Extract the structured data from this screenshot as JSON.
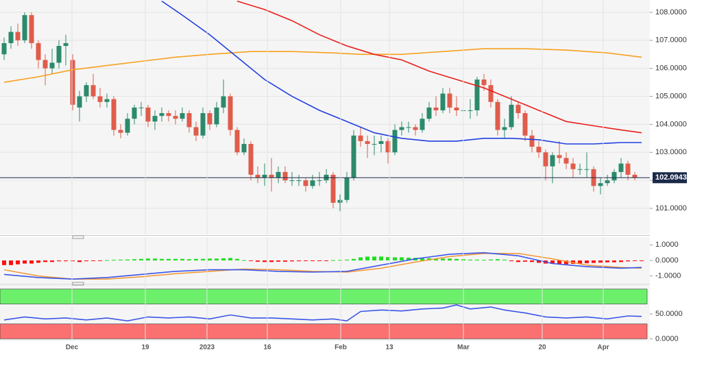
{
  "chart_data": [
    {
      "type": "candlestick",
      "xlim": [
        -0.6,
        94.2
      ],
      "ylim": [
        100.07,
        108.44
      ],
      "yticks": [
        {
          "value": 101,
          "label": "101.0000"
        },
        {
          "value": 102,
          "label": "102.0000"
        },
        {
          "value": 103,
          "label": "103.0000"
        },
        {
          "value": 104,
          "label": "104.0000"
        },
        {
          "value": 105,
          "label": "105.0000"
        },
        {
          "value": 106,
          "label": "106.0000"
        },
        {
          "value": 107,
          "label": "107.0000"
        },
        {
          "value": 108,
          "label": "108.0000"
        }
      ],
      "grid": true,
      "up_color": "#2c8a6c",
      "down_color": "#e05c4b",
      "ohlc": [
        [
          106.5,
          107.1,
          106.3,
          106.9
        ],
        [
          106.9,
          107.5,
          106.7,
          107.3
        ],
        [
          107.3,
          107.6,
          106.8,
          107.0
        ],
        [
          107.0,
          108.0,
          106.9,
          107.9
        ],
        [
          107.9,
          108.0,
          106.7,
          106.9
        ],
        [
          106.9,
          107.0,
          106.0,
          106.3
        ],
        [
          106.3,
          106.5,
          105.4,
          106.0
        ],
        [
          106.0,
          106.7,
          105.8,
          106.2
        ],
        [
          106.2,
          107.0,
          106.0,
          106.8
        ],
        [
          106.8,
          107.2,
          106.1,
          106.9
        ],
        [
          106.3,
          106.5,
          104.5,
          104.7
        ],
        [
          104.6,
          105.2,
          104.1,
          105.0
        ],
        [
          105.0,
          105.5,
          104.8,
          105.4
        ],
        [
          105.4,
          105.8,
          104.9,
          105.0
        ],
        [
          105.0,
          105.3,
          104.6,
          104.8
        ],
        [
          104.8,
          105.1,
          104.6,
          104.9
        ],
        [
          104.9,
          105.0,
          103.6,
          103.8
        ],
        [
          103.8,
          104.0,
          103.5,
          103.7
        ],
        [
          103.7,
          104.4,
          103.6,
          104.2
        ],
        [
          104.2,
          104.7,
          104.0,
          104.6
        ],
        [
          104.6,
          104.8,
          104.3,
          104.6
        ],
        [
          104.6,
          104.7,
          103.9,
          104.1
        ],
        [
          104.1,
          104.5,
          103.8,
          104.3
        ],
        [
          104.3,
          104.6,
          104.1,
          104.4
        ],
        [
          104.4,
          104.5,
          104.1,
          104.3
        ],
        [
          104.3,
          104.5,
          104.0,
          104.2
        ],
        [
          104.2,
          104.6,
          104.1,
          104.4
        ],
        [
          104.4,
          104.5,
          103.7,
          103.9
        ],
        [
          103.9,
          104.1,
          103.4,
          103.6
        ],
        [
          103.6,
          104.6,
          103.5,
          104.4
        ],
        [
          104.4,
          104.5,
          103.8,
          104.0
        ],
        [
          104.0,
          104.8,
          103.9,
          104.6
        ],
        [
          104.6,
          105.6,
          104.4,
          105.0
        ],
        [
          105.0,
          105.1,
          103.6,
          103.8
        ],
        [
          103.8,
          103.9,
          102.9,
          103.0
        ],
        [
          103.0,
          103.5,
          102.9,
          103.3
        ],
        [
          103.3,
          103.4,
          102.0,
          102.2
        ],
        [
          102.2,
          102.5,
          101.9,
          102.1
        ],
        [
          102.1,
          102.6,
          101.8,
          102.2
        ],
        [
          102.2,
          102.8,
          101.6,
          102.1
        ],
        [
          102.1,
          102.5,
          101.9,
          102.3
        ],
        [
          102.3,
          102.5,
          101.9,
          102.0
        ],
        [
          102.0,
          102.3,
          101.8,
          102.0
        ],
        [
          102.0,
          102.2,
          101.8,
          102.0
        ],
        [
          102.0,
          102.1,
          101.6,
          101.8
        ],
        [
          101.8,
          102.2,
          101.7,
          102.0
        ],
        [
          102.0,
          102.3,
          101.8,
          102.0
        ],
        [
          102.0,
          102.4,
          101.9,
          102.2
        ],
        [
          102.2,
          102.3,
          101.0,
          101.2
        ],
        [
          101.2,
          101.5,
          100.9,
          101.3
        ],
        [
          101.3,
          102.3,
          101.2,
          102.1
        ],
        [
          102.1,
          103.8,
          102.0,
          103.6
        ],
        [
          103.6,
          103.9,
          103.2,
          103.4
        ],
        [
          103.4,
          103.6,
          102.8,
          103.3
        ],
        [
          103.3,
          103.6,
          102.9,
          103.3
        ],
        [
          103.3,
          103.6,
          103.0,
          103.4
        ],
        [
          103.4,
          103.5,
          102.6,
          103.0
        ],
        [
          103.0,
          104.0,
          102.9,
          103.8
        ],
        [
          103.8,
          104.1,
          103.6,
          103.9
        ],
        [
          103.9,
          104.1,
          103.7,
          103.9
        ],
        [
          103.9,
          104.0,
          103.6,
          103.8
        ],
        [
          103.8,
          104.4,
          103.7,
          104.2
        ],
        [
          104.2,
          104.8,
          104.1,
          104.6
        ],
        [
          104.6,
          105.0,
          104.3,
          104.5
        ],
        [
          104.5,
          105.3,
          104.4,
          105.1
        ],
        [
          105.1,
          105.3,
          104.4,
          104.6
        ],
        [
          104.6,
          105.0,
          104.3,
          104.5
        ],
        [
          104.5,
          105.0,
          104.3,
          104.5
        ],
        [
          104.5,
          104.9,
          104.2,
          104.5
        ],
        [
          104.5,
          105.7,
          104.3,
          105.6
        ],
        [
          105.6,
          105.8,
          105.2,
          105.4
        ],
        [
          105.4,
          105.6,
          104.6,
          104.8
        ],
        [
          104.8,
          104.9,
          103.6,
          103.8
        ],
        [
          103.8,
          104.2,
          103.5,
          103.9
        ],
        [
          103.9,
          105.0,
          103.8,
          104.7
        ],
        [
          104.7,
          104.8,
          104.2,
          104.4
        ],
        [
          104.4,
          104.5,
          103.4,
          103.6
        ],
        [
          103.6,
          103.8,
          103.0,
          103.2
        ],
        [
          103.2,
          103.4,
          102.8,
          103.0
        ],
        [
          103.0,
          103.1,
          102.0,
          102.5
        ],
        [
          102.5,
          103.0,
          101.9,
          102.9
        ],
        [
          102.9,
          103.4,
          102.6,
          102.8
        ],
        [
          102.8,
          103.0,
          102.4,
          102.6
        ],
        [
          102.6,
          102.8,
          102.1,
          102.4
        ],
        [
          102.4,
          102.6,
          102.2,
          102.4
        ],
        [
          102.4,
          103.0,
          102.1,
          102.4
        ],
        [
          102.4,
          102.5,
          101.6,
          101.8
        ],
        [
          101.8,
          102.1,
          101.5,
          101.9
        ],
        [
          101.9,
          102.2,
          101.8,
          102.0
        ],
        [
          102.0,
          102.4,
          101.9,
          102.3
        ],
        [
          102.3,
          102.8,
          102.1,
          102.6
        ],
        [
          102.6,
          102.7,
          102.0,
          102.2
        ],
        [
          102.2,
          102.3,
          102.0,
          102.09
        ]
      ],
      "series": [
        {
          "color": "#f7a01c",
          "x": [
            0,
            5,
            10,
            15,
            20,
            25,
            30,
            36,
            42,
            48,
            52,
            58,
            64,
            70,
            76,
            82,
            88,
            93
          ],
          "values": [
            105.5,
            105.7,
            105.95,
            106.1,
            106.25,
            106.4,
            106.5,
            106.6,
            106.6,
            106.55,
            106.5,
            106.5,
            106.6,
            106.7,
            106.7,
            106.65,
            106.55,
            106.4
          ]
        },
        {
          "color": "#e81e1a",
          "x": [
            34,
            38,
            42,
            46,
            50,
            54,
            58,
            62,
            66,
            70,
            74,
            78,
            82,
            86,
            90,
            93
          ],
          "values": [
            108.4,
            108.1,
            107.7,
            107.2,
            106.8,
            106.5,
            106.3,
            105.9,
            105.6,
            105.3,
            104.9,
            104.5,
            104.1,
            103.95,
            103.8,
            103.7
          ]
        },
        {
          "color": "#1f3ee0",
          "x": [
            23,
            26,
            30,
            34,
            38,
            42,
            46,
            50,
            54,
            58,
            62,
            66,
            70,
            74,
            78,
            82,
            86,
            90,
            93
          ],
          "values": [
            108.4,
            107.9,
            107.2,
            106.4,
            105.6,
            105.0,
            104.5,
            104.1,
            103.7,
            103.5,
            103.4,
            103.4,
            103.5,
            103.5,
            103.45,
            103.3,
            103.3,
            103.35,
            103.35
          ]
        }
      ],
      "last_price": {
        "value": 102.0943,
        "label": "102.0943"
      }
    },
    {
      "type": "macd",
      "xlim": [
        -0.6,
        94.2
      ],
      "ylim": [
        -1.5,
        1.5
      ],
      "yticks": [
        {
          "value": 1,
          "label": "1.0000"
        },
        {
          "value": 0,
          "label": "0.0000"
        },
        {
          "value": -1,
          "label": "-1.0000"
        }
      ],
      "positive_color": "#22dd22",
      "negative_color": "#ff1010",
      "values": [
        -0.3,
        -0.3,
        -0.25,
        -0.2,
        -0.2,
        -0.15,
        -0.1,
        -0.1,
        -0.05,
        -0.05,
        -0.05,
        -0.1,
        -0.05,
        -0.03,
        -0.02,
        0.02,
        0.04,
        0.05,
        0.06,
        0.08,
        0.1,
        0.12,
        0.12,
        0.1,
        0.1,
        0.1,
        0.1,
        0.08,
        0.1,
        0.1,
        0.12,
        0.12,
        0.14,
        0.16,
        0.1,
        0.02,
        -0.04,
        -0.08,
        -0.1,
        -0.1,
        -0.08,
        -0.08,
        -0.06,
        -0.05,
        -0.04,
        -0.03,
        -0.02,
        -0.02,
        0.02,
        0.03,
        0.05,
        0.1,
        0.2,
        0.25,
        0.25,
        0.25,
        0.22,
        0.2,
        0.2,
        0.18,
        0.17,
        0.15,
        0.14,
        0.13,
        0.12,
        0.12,
        0.1,
        0.08,
        0.05,
        0.05,
        0.04,
        0.06,
        0.08,
        0.05,
        -0.05,
        -0.1,
        -0.08,
        -0.1,
        -0.15,
        -0.2,
        -0.22,
        -0.24,
        -0.24,
        -0.22,
        -0.2,
        -0.18,
        -0.16,
        -0.14,
        -0.12,
        -0.12,
        -0.1,
        -0.06,
        -0.03,
        -0.02
      ],
      "series": [
        {
          "color": "#f39a3a",
          "x": [
            0,
            5,
            10,
            15,
            20,
            25,
            30,
            35,
            40,
            45,
            50,
            55,
            60,
            65,
            70,
            75,
            80,
            85,
            90,
            93
          ],
          "values": [
            -0.6,
            -1.0,
            -1.2,
            -1.2,
            -1.05,
            -0.85,
            -0.7,
            -0.55,
            -0.6,
            -0.7,
            -0.75,
            -0.5,
            -0.1,
            0.25,
            0.45,
            0.45,
            0.1,
            -0.3,
            -0.45,
            -0.5
          ]
        },
        {
          "color": "#3a55e8",
          "x": [
            0,
            5,
            10,
            15,
            20,
            25,
            30,
            35,
            40,
            45,
            50,
            55,
            60,
            65,
            70,
            75,
            80,
            85,
            90,
            93
          ],
          "values": [
            -0.9,
            -1.1,
            -1.2,
            -1.1,
            -0.9,
            -0.7,
            -0.6,
            -0.6,
            -0.7,
            -0.75,
            -0.7,
            -0.3,
            0.1,
            0.4,
            0.5,
            0.3,
            -0.2,
            -0.4,
            -0.5,
            -0.45
          ]
        }
      ]
    },
    {
      "type": "line",
      "xlim": [
        -0.6,
        94.2
      ],
      "ylim": [
        -5,
        108
      ],
      "yticks": [
        {
          "value": 0,
          "label": "0.0000"
        },
        {
          "value": 50,
          "label": "50.0000"
        }
      ],
      "bands": [
        {
          "from": 70,
          "to": 100,
          "color": "#6cf06c"
        },
        {
          "from": 0,
          "to": 30,
          "color": "#fb7070"
        }
      ],
      "series": [
        {
          "color": "#3a55e8",
          "x": [
            0,
            3,
            6,
            9,
            12,
            15,
            18,
            21,
            24,
            27,
            30,
            33,
            36,
            39,
            42,
            45,
            48,
            50,
            52,
            55,
            58,
            61,
            64,
            66,
            68,
            71,
            73,
            76,
            79,
            82,
            85,
            88,
            91,
            93
          ],
          "values": [
            38,
            44,
            40,
            42,
            38,
            42,
            36,
            44,
            42,
            44,
            40,
            48,
            42,
            42,
            40,
            38,
            40,
            36,
            55,
            58,
            56,
            60,
            62,
            68,
            60,
            64,
            58,
            52,
            44,
            42,
            44,
            40,
            46,
            45
          ]
        }
      ],
      "xticks": [
        {
          "value": 9.9,
          "label": "Dec"
        },
        {
          "value": 20.6,
          "label": "19"
        },
        {
          "value": 29.6,
          "label": "2023"
        },
        {
          "value": 38.4,
          "label": "16"
        },
        {
          "value": 49.1,
          "label": "Feb"
        },
        {
          "value": 56.2,
          "label": "13"
        },
        {
          "value": 67,
          "label": "Mar"
        },
        {
          "value": 78.5,
          "label": "20"
        },
        {
          "value": 87.4,
          "label": "Apr"
        }
      ]
    }
  ]
}
